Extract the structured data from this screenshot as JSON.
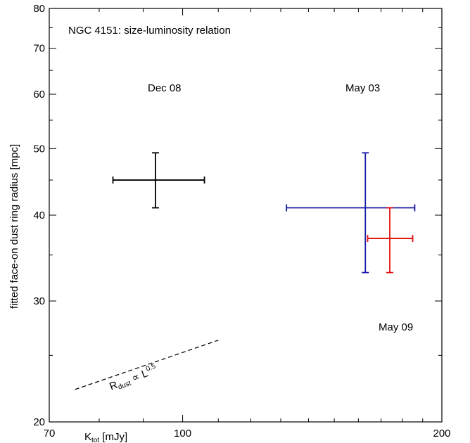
{
  "chart_data": {
    "type": "scatter",
    "title": "NGC 4151: size-luminosity relation",
    "xlabel": {
      "main": "K",
      "sub": "tot",
      "unit": " [mJy]"
    },
    "ylabel": "fitted face-on dust ring radius [mpc]",
    "x_scale": "log",
    "y_scale": "log",
    "xlim": [
      70,
      200
    ],
    "ylim": [
      20,
      80
    ],
    "xticks_major": [
      70,
      100,
      200
    ],
    "xticks_minor": [
      80,
      90,
      110,
      120,
      130,
      140,
      150,
      160,
      170,
      180,
      190
    ],
    "yticks_major": [
      20,
      30,
      40,
      50,
      60,
      70,
      80
    ],
    "yticks_minor": [
      25,
      35,
      45,
      55,
      65,
      75
    ],
    "grid": false,
    "series": [
      {
        "name": "Dec 08",
        "color": "#000000",
        "x": 93,
        "y": 45,
        "x_err": [
          83,
          106
        ],
        "y_err": [
          41,
          49.3
        ]
      },
      {
        "name": "May 03",
        "color": "#1a1aa6",
        "x": 163,
        "y": 41,
        "x_err": [
          132,
          186
        ],
        "y_err": [
          33,
          49.3
        ]
      },
      {
        "name": "May 09",
        "color": "#e01010",
        "x": 174,
        "y": 37,
        "x_err": [
          164,
          185
        ],
        "y_err": [
          33,
          41
        ]
      }
    ],
    "annotations": [
      {
        "type": "slope_line",
        "label_main": "R",
        "label_sub": "dust",
        "label_mid": " ∝ L",
        "label_sup": "0.5",
        "x_range": [
          75,
          110
        ],
        "y_range": [
          22.3,
          26.3
        ],
        "style": "dashed"
      }
    ]
  }
}
